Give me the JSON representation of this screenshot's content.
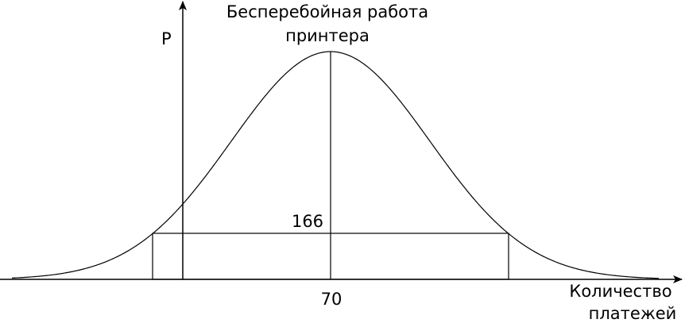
{
  "diagram": {
    "title_line1": "Бесперебойная работа",
    "title_line2": "принтера",
    "y_axis_label": "P",
    "x_axis_label_line1": "Количество",
    "x_axis_label_line2": "платежей",
    "mean_label": "70",
    "level_label": "166",
    "stroke_color": "#000000"
  }
}
